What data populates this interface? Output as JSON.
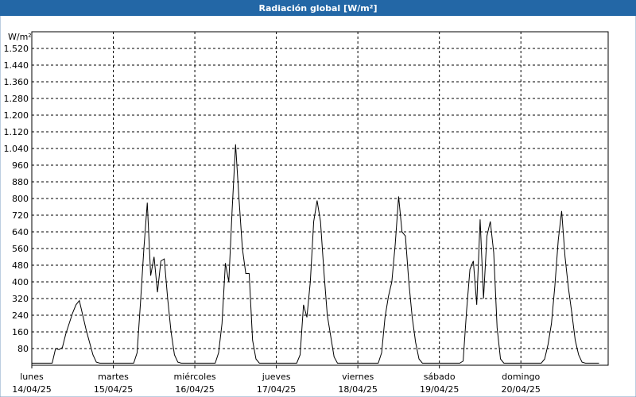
{
  "chart_data": {
    "type": "line",
    "title": "Radiación global [W/m²]",
    "y_label": "W/m²",
    "x": [
      0,
      1,
      2,
      3,
      4,
      5,
      6,
      7,
      8,
      9,
      10,
      11,
      12,
      13,
      14,
      15,
      16,
      17,
      18,
      19,
      20,
      21,
      22,
      23,
      24,
      25,
      26,
      27,
      28,
      29,
      30,
      31,
      32,
      33,
      34,
      35,
      36,
      37,
      38,
      39,
      40,
      41,
      42,
      43,
      44,
      45,
      46,
      47,
      48,
      49,
      50,
      51,
      52,
      53,
      54,
      55,
      56,
      57,
      58,
      59,
      60,
      61,
      62,
      63,
      64,
      65,
      66,
      67,
      68,
      69,
      70,
      71,
      72,
      73,
      74,
      75,
      76,
      77,
      78,
      79,
      80,
      81,
      82,
      83,
      84,
      85,
      86,
      87,
      88,
      89,
      90,
      91,
      92,
      93,
      94,
      95,
      96,
      97,
      98,
      99,
      100,
      101,
      102,
      103,
      104,
      105,
      106,
      107,
      108,
      109,
      110,
      111,
      112,
      113,
      114,
      115,
      116,
      117,
      118,
      119,
      120,
      121,
      122,
      123,
      124,
      125,
      126,
      127,
      128,
      129,
      130,
      131,
      132,
      133,
      134,
      135,
      136,
      137,
      138,
      139,
      140,
      141,
      142,
      143,
      144,
      145,
      146,
      147,
      148,
      149,
      150,
      151,
      152,
      153,
      154,
      155,
      156,
      157,
      158,
      159,
      160,
      161,
      162,
      163,
      164,
      165,
      166,
      167
    ],
    "series": [
      {
        "name": "Radiación global",
        "color": "#000000",
        "values": [
          10,
          10,
          10,
          10,
          10,
          10,
          10,
          80,
          75,
          85,
          150,
          200,
          250,
          290,
          310,
          240,
          170,
          110,
          50,
          15,
          10,
          10,
          10,
          10,
          10,
          10,
          10,
          10,
          10,
          10,
          10,
          60,
          300,
          560,
          780,
          430,
          520,
          350,
          500,
          510,
          320,
          160,
          50,
          15,
          10,
          10,
          10,
          10,
          10,
          10,
          10,
          10,
          10,
          10,
          10,
          60,
          200,
          490,
          400,
          750,
          1060,
          800,
          560,
          440,
          440,
          120,
          30,
          10,
          10,
          10,
          10,
          10,
          10,
          10,
          10,
          10,
          10,
          10,
          10,
          50,
          290,
          230,
          400,
          690,
          790,
          690,
          450,
          240,
          140,
          40,
          10,
          10,
          10,
          10,
          10,
          10,
          10,
          10,
          10,
          10,
          10,
          10,
          10,
          60,
          230,
          330,
          400,
          580,
          810,
          640,
          620,
          400,
          230,
          110,
          30,
          10,
          10,
          10,
          10,
          10,
          10,
          10,
          10,
          10,
          10,
          10,
          10,
          20,
          260,
          460,
          500,
          290,
          700,
          320,
          620,
          690,
          540,
          180,
          30,
          10,
          10,
          10,
          10,
          10,
          10,
          10,
          10,
          10,
          10,
          10,
          10,
          30,
          100,
          200,
          380,
          600,
          740,
          520,
          370,
          250,
          120,
          50,
          15,
          10,
          10,
          10,
          10,
          10
        ]
      }
    ],
    "xlim": [
      0,
      169.7
    ],
    "xticks": [
      {
        "value": 0,
        "label": "lunes"
      },
      {
        "value": 24,
        "label": "martes"
      },
      {
        "value": 48,
        "label": "miércoles"
      },
      {
        "value": 72,
        "label": "jueves"
      },
      {
        "value": 96,
        "label": "viernes"
      },
      {
        "value": 120,
        "label": "sábado"
      },
      {
        "value": 144,
        "label": "domingo"
      }
    ],
    "xtick_dates": [
      "14/04/25",
      "15/04/25",
      "16/04/25",
      "17/04/25",
      "18/04/25",
      "19/04/25",
      "20/04/25"
    ],
    "ylim": [
      0,
      1600
    ],
    "yticks": [
      80,
      160,
      240,
      320,
      400,
      480,
      560,
      640,
      720,
      800,
      880,
      960,
      {
        "value": 1040,
        "label": "1.040"
      },
      {
        "value": 1120,
        "label": "1.120"
      },
      {
        "value": 1200,
        "label": "1.200"
      },
      {
        "value": 1280,
        "label": "1.280"
      },
      {
        "value": 1360,
        "label": "1.360"
      },
      {
        "value": 1440,
        "label": "1.440"
      },
      {
        "value": 1520,
        "label": "1.520"
      }
    ],
    "grid": true
  }
}
